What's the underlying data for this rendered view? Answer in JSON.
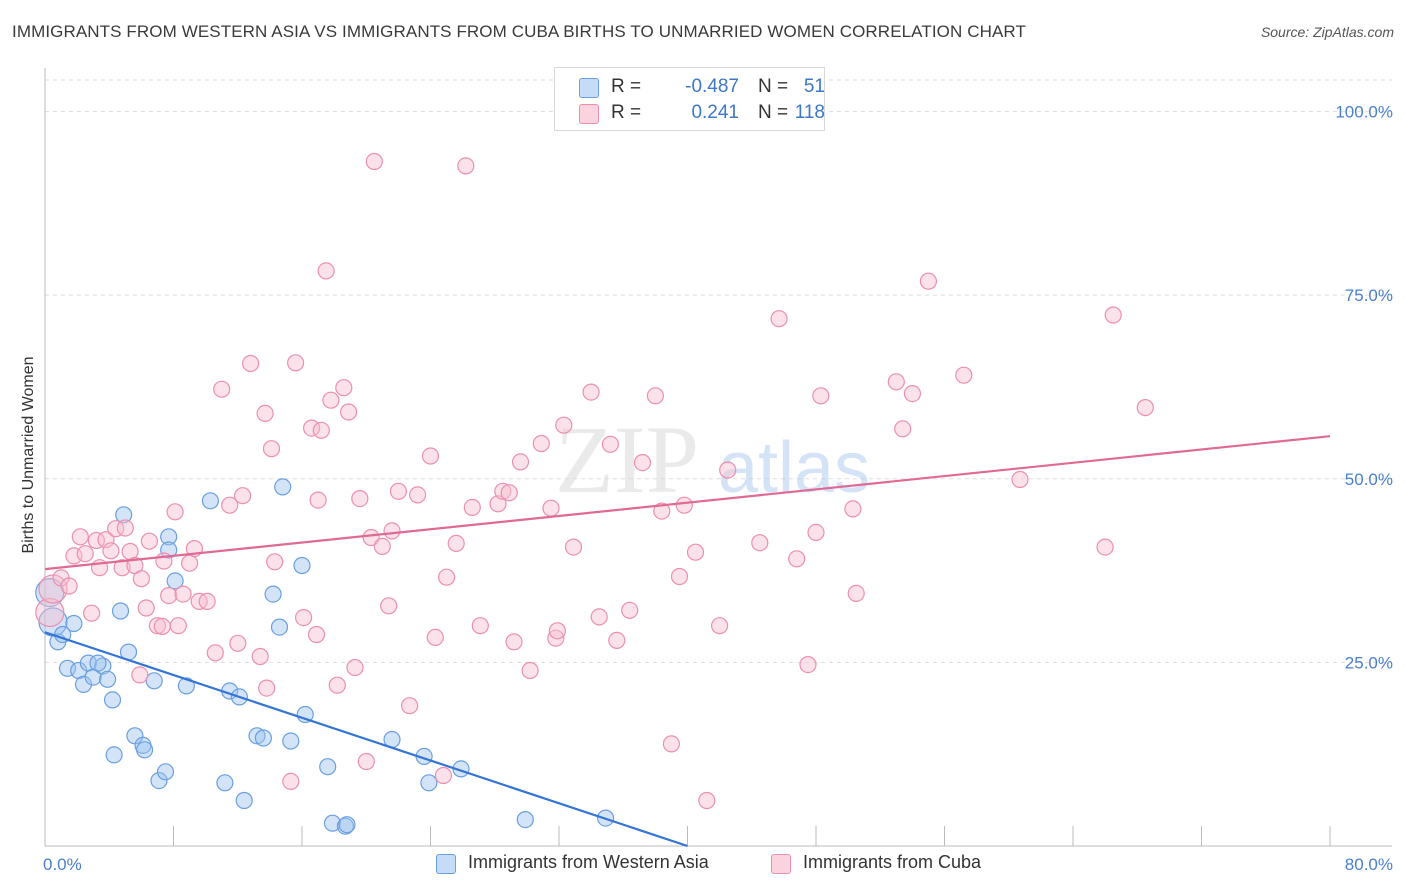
{
  "title": "IMMIGRANTS FROM WESTERN ASIA VS IMMIGRANTS FROM CUBA BIRTHS TO UNMARRIED WOMEN CORRELATION CHART",
  "source": "Source: ZipAtlas.com",
  "watermark": {
    "zip": "ZIP",
    "atlas": "atlas"
  },
  "legend": {
    "r_label": "R =",
    "n_label": "N =",
    "rows": [
      {
        "r": "-0.487",
        "n": "51",
        "color": "#9ec3ef",
        "border": "#6a9fe0"
      },
      {
        "r": "0.241",
        "n": "118",
        "color": "#f7bfd0",
        "border": "#ec8fae"
      }
    ]
  },
  "chart_data": {
    "type": "scatter",
    "title": "IMMIGRANTS FROM WESTERN ASIA VS IMMIGRANTS FROM CUBA BIRTHS TO UNMARRIED WOMEN CORRELATION CHART",
    "xlabel": "",
    "ylabel": "Births to Unmarried Women",
    "xlim": [
      0,
      80
    ],
    "ylim": [
      0,
      100
    ],
    "x_tick_labels": [
      "0.0%",
      "80.0%"
    ],
    "y_tick_labels": [
      "25.0%",
      "50.0%",
      "75.0%",
      "100.0%"
    ],
    "y_tick_values": [
      25,
      50,
      75,
      100
    ],
    "series": [
      {
        "name": "Immigrants from Western Asia",
        "color": "#6a9fe0",
        "fill": "#9ec3ef",
        "line_color": "#3474d4",
        "trend": {
          "x": [
            0,
            40
          ],
          "y": [
            29.1,
            0
          ]
        },
        "points": [
          [
            0.3,
            34.5
          ],
          [
            0.5,
            30.5
          ],
          [
            0.8,
            27.8
          ],
          [
            1.1,
            28.8
          ],
          [
            1.4,
            24.2
          ],
          [
            1.8,
            30.3
          ],
          [
            2.1,
            23.9
          ],
          [
            2.4,
            22.0
          ],
          [
            2.7,
            24.9
          ],
          [
            3.0,
            23.0
          ],
          [
            3.6,
            24.5
          ],
          [
            3.9,
            22.7
          ],
          [
            4.2,
            19.9
          ],
          [
            4.7,
            32.0
          ],
          [
            5.2,
            26.4
          ],
          [
            5.6,
            15.0
          ],
          [
            6.1,
            13.7
          ],
          [
            6.8,
            22.5
          ],
          [
            7.1,
            8.9
          ],
          [
            7.7,
            42.1
          ],
          [
            8.1,
            36.1
          ],
          [
            8.8,
            21.8
          ],
          [
            10.3,
            47.0
          ],
          [
            11.2,
            8.6
          ],
          [
            11.5,
            21.1
          ],
          [
            12.1,
            20.3
          ],
          [
            12.4,
            6.2
          ],
          [
            13.2,
            15.0
          ],
          [
            13.6,
            14.7
          ],
          [
            14.2,
            34.3
          ],
          [
            14.6,
            29.8
          ],
          [
            14.8,
            48.9
          ],
          [
            15.3,
            14.3
          ],
          [
            16.0,
            38.2
          ],
          [
            16.2,
            17.9
          ],
          [
            17.6,
            10.8
          ],
          [
            17.9,
            3.1
          ],
          [
            18.7,
            2.7
          ],
          [
            18.8,
            2.9
          ],
          [
            21.6,
            14.5
          ],
          [
            23.6,
            12.2
          ],
          [
            23.9,
            8.6
          ],
          [
            25.9,
            10.5
          ],
          [
            29.9,
            3.6
          ],
          [
            34.9,
            3.8
          ],
          [
            4.9,
            45.1
          ],
          [
            7.7,
            40.3
          ],
          [
            3.3,
            24.9
          ],
          [
            4.3,
            12.4
          ],
          [
            6.2,
            13.1
          ],
          [
            7.5,
            10.1
          ]
        ]
      },
      {
        "name": "Immigrants from Cuba",
        "color": "#ec8fae",
        "fill": "#f7bfd0",
        "line_color": "#e06a95",
        "trend": {
          "x": [
            0,
            80
          ],
          "y": [
            37.7,
            55.8
          ]
        },
        "points": [
          [
            0.3,
            31.8
          ],
          [
            0.5,
            35.0
          ],
          [
            1.0,
            36.5
          ],
          [
            1.5,
            35.4
          ],
          [
            1.8,
            39.5
          ],
          [
            2.2,
            42.1
          ],
          [
            2.5,
            39.8
          ],
          [
            2.9,
            31.7
          ],
          [
            3.2,
            41.6
          ],
          [
            3.4,
            37.9
          ],
          [
            3.8,
            41.7
          ],
          [
            4.1,
            40.2
          ],
          [
            4.4,
            43.2
          ],
          [
            4.8,
            37.9
          ],
          [
            5.0,
            43.3
          ],
          [
            5.3,
            40.1
          ],
          [
            5.6,
            38.2
          ],
          [
            6.0,
            36.4
          ],
          [
            6.3,
            32.4
          ],
          [
            6.5,
            41.5
          ],
          [
            7.0,
            30.0
          ],
          [
            7.3,
            29.9
          ],
          [
            7.7,
            34.1
          ],
          [
            8.1,
            45.5
          ],
          [
            8.6,
            34.3
          ],
          [
            9.0,
            38.5
          ],
          [
            9.3,
            40.5
          ],
          [
            9.6,
            33.3
          ],
          [
            10.1,
            33.3
          ],
          [
            10.6,
            26.3
          ],
          [
            11.0,
            62.2
          ],
          [
            11.5,
            46.4
          ],
          [
            12.0,
            27.6
          ],
          [
            12.3,
            47.7
          ],
          [
            12.8,
            65.7
          ],
          [
            13.4,
            25.8
          ],
          [
            13.7,
            58.9
          ],
          [
            14.1,
            54.1
          ],
          [
            14.3,
            38.7
          ],
          [
            15.3,
            8.8
          ],
          [
            15.6,
            65.8
          ],
          [
            16.1,
            31.1
          ],
          [
            16.6,
            56.9
          ],
          [
            17.0,
            47.1
          ],
          [
            17.2,
            56.6
          ],
          [
            17.5,
            78.3
          ],
          [
            17.8,
            60.7
          ],
          [
            18.2,
            21.9
          ],
          [
            18.6,
            62.4
          ],
          [
            18.9,
            59.1
          ],
          [
            19.3,
            24.3
          ],
          [
            19.6,
            47.3
          ],
          [
            20.0,
            11.5
          ],
          [
            20.3,
            42.0
          ],
          [
            20.5,
            93.2
          ],
          [
            21.0,
            40.8
          ],
          [
            21.4,
            32.7
          ],
          [
            21.6,
            42.9
          ],
          [
            22.0,
            48.3
          ],
          [
            22.7,
            19.1
          ],
          [
            23.2,
            47.8
          ],
          [
            24.0,
            53.1
          ],
          [
            24.3,
            28.4
          ],
          [
            24.8,
            9.6
          ],
          [
            25.0,
            36.6
          ],
          [
            25.6,
            41.2
          ],
          [
            26.2,
            92.6
          ],
          [
            26.6,
            46.1
          ],
          [
            27.1,
            30.0
          ],
          [
            28.2,
            46.6
          ],
          [
            28.5,
            48.3
          ],
          [
            29.2,
            27.8
          ],
          [
            29.6,
            52.3
          ],
          [
            30.2,
            23.9
          ],
          [
            30.9,
            54.8
          ],
          [
            31.5,
            46.0
          ],
          [
            31.8,
            28.3
          ],
          [
            31.9,
            29.3
          ],
          [
            32.3,
            57.3
          ],
          [
            32.9,
            40.7
          ],
          [
            34.0,
            61.8
          ],
          [
            34.5,
            31.2
          ],
          [
            35.2,
            54.7
          ],
          [
            35.6,
            28.0
          ],
          [
            36.4,
            32.1
          ],
          [
            37.2,
            52.2
          ],
          [
            38.0,
            61.3
          ],
          [
            38.4,
            45.6
          ],
          [
            39.0,
            13.9
          ],
          [
            39.5,
            36.7
          ],
          [
            39.8,
            46.4
          ],
          [
            40.5,
            40.0
          ],
          [
            41.2,
            6.2
          ],
          [
            42.0,
            30.0
          ],
          [
            42.5,
            51.2
          ],
          [
            44.5,
            41.3
          ],
          [
            45.7,
            71.8
          ],
          [
            46.8,
            39.1
          ],
          [
            47.5,
            24.7
          ],
          [
            48.0,
            42.7
          ],
          [
            48.3,
            61.3
          ],
          [
            50.3,
            45.9
          ],
          [
            50.5,
            34.4
          ],
          [
            53.0,
            63.2
          ],
          [
            53.4,
            56.8
          ],
          [
            54.0,
            61.6
          ],
          [
            55.0,
            76.9
          ],
          [
            57.2,
            64.1
          ],
          [
            60.7,
            49.9
          ],
          [
            66.0,
            40.7
          ],
          [
            66.5,
            72.3
          ],
          [
            68.5,
            59.7
          ],
          [
            8.3,
            30.0
          ],
          [
            5.9,
            23.3
          ],
          [
            16.9,
            28.8
          ],
          [
            13.8,
            21.5
          ],
          [
            7.4,
            38.8
          ],
          [
            28.9,
            48.1
          ]
        ]
      }
    ]
  },
  "y_axis_label": "Births to Unmarried Women",
  "bottom_legend": [
    {
      "label": "Immigrants from Western Asia",
      "color": "#c5dbf6",
      "border": "#6a9fe0"
    },
    {
      "label": "Immigrants from Cuba",
      "color": "#fad3df",
      "border": "#ec8fae"
    }
  ]
}
